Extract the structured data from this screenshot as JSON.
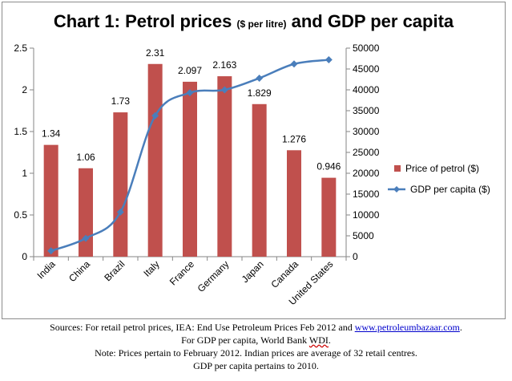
{
  "title_main_a": "Chart 1: Petrol prices",
  "title_small": "($ per litre)",
  "title_main_b": "and GDP per capita",
  "chart_data": {
    "type": "bar",
    "categories": [
      "India",
      "China",
      "Brazil",
      "Italy",
      "France",
      "Germany",
      "Japan",
      "Canada",
      "United States"
    ],
    "series": [
      {
        "name": "Price of petrol ($)",
        "type": "bar",
        "axis": "left",
        "values": [
          1.34,
          1.06,
          1.73,
          2.31,
          2.097,
          2.163,
          1.829,
          1.276,
          0.946
        ],
        "color": "#c0504d"
      },
      {
        "name": "GDP per capita ($)",
        "type": "line",
        "axis": "right",
        "values": [
          1400,
          4400,
          10700,
          33800,
          39300,
          40000,
          42800,
          46200,
          47200
        ],
        "color": "#4a7ebb"
      }
    ],
    "data_labels": [
      "1.34",
      "1.06",
      "1.73",
      "2.31",
      "2.097",
      "2.163",
      "1.829",
      "1.276",
      "0.946"
    ],
    "y_left": {
      "min": 0,
      "max": 2.5,
      "ticks": [
        "0",
        "0.5",
        "1",
        "1.5",
        "2",
        "2.5"
      ]
    },
    "y_right": {
      "min": 0,
      "max": 50000,
      "ticks": [
        "0",
        "5000",
        "10000",
        "15000",
        "20000",
        "25000",
        "30000",
        "35000",
        "40000",
        "45000",
        "50000"
      ]
    },
    "legend_position": "right",
    "grid": false
  },
  "sources": {
    "line1_prefix": "Sources: For retail petrol prices, IEA: End Use Petroleum  Prices Feb 2012 and ",
    "line1_link": "www.petroleumbazaar.com",
    "line1_suffix": ".",
    "line2_prefix": "For GDP per capita, World Bank ",
    "line2_wdi": "WDI",
    "line2_suffix": ".",
    "line3": "Note: Prices pertain  to February 2012. Indian prices are average  of 32 retail centres.",
    "line4": "GDP per capita pertains  to 2010."
  }
}
